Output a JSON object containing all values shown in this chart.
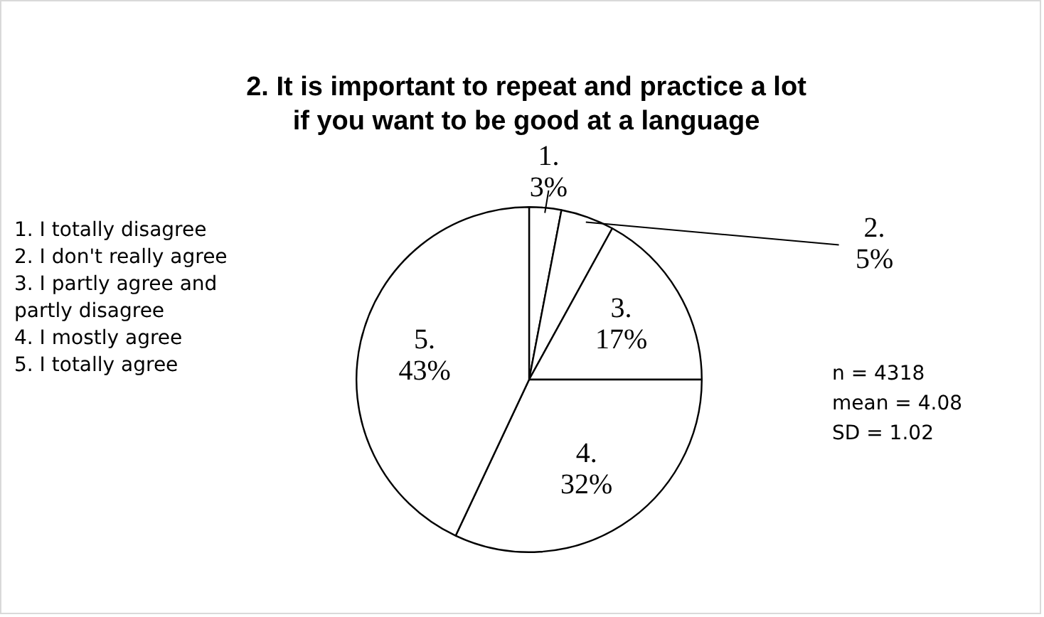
{
  "chart_data": {
    "type": "pie",
    "title": "2. It is important to repeat and practice a lot if you want to be good at a language",
    "categories": [
      "1.",
      "2.",
      "3.",
      "4.",
      "5."
    ],
    "values": [
      3,
      5,
      17,
      32,
      43
    ],
    "colors": [
      "#ffffff",
      "#ffffff",
      "#ffffff",
      "#ffffff",
      "#ffffff"
    ],
    "value_labels": [
      "3%",
      "5%",
      "17%",
      "32%",
      "43%"
    ],
    "annotations": [
      "1. I totally disagree",
      "2. I don't really agree",
      "3. I partly agree and partly disagree",
      "4. I mostly agree",
      "5. I totally agree",
      "n = 4318",
      "mean = 4.08",
      "SD = 1.02"
    ]
  }
}
